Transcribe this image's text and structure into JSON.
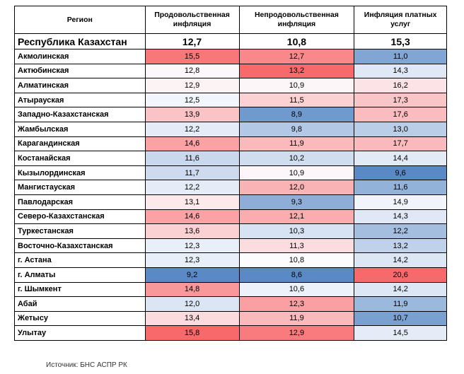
{
  "table": {
    "header": [
      "Регион",
      "Продовольственная инфляция",
      "Непродовольственная инфляция",
      "Инфляция платных услуг"
    ],
    "national": [
      "Республика Казахстан",
      "12,7",
      "10,8",
      "15,3"
    ],
    "rows": [
      [
        "Акмолинская",
        "15,5",
        "12,7",
        "11,0"
      ],
      [
        "Актюбинская",
        "12,8",
        "13,2",
        "14,3"
      ],
      [
        "Алматинская",
        "12,9",
        "10,9",
        "16,2"
      ],
      [
        "Атырауская",
        "12,5",
        "11,5",
        "17,3"
      ],
      [
        "Западно-Казахстанская",
        "13,9",
        "8,9",
        "17,6"
      ],
      [
        "Жамбылская",
        "12,2",
        "9,8",
        "13,0"
      ],
      [
        "Карагандинская",
        "14,6",
        "11,9",
        "17,7"
      ],
      [
        "Костанайская",
        "11,6",
        "10,2",
        "14,4"
      ],
      [
        "Кызылординская",
        "11,7",
        "10,9",
        "9,6"
      ],
      [
        "Мангистауская",
        "12,2",
        "12,0",
        "11,6"
      ],
      [
        "Павлодарская",
        "13,1",
        "9,3",
        "14,9"
      ],
      [
        "Северо-Казахстанская",
        "14,6",
        "12,1",
        "14,3"
      ],
      [
        "Туркестанская",
        "13,6",
        "10,3",
        "12,2"
      ],
      [
        "Восточно-Казахстанская",
        "12,3",
        "11,3",
        "13,2"
      ],
      [
        "г. Астана",
        "12,3",
        "10,8",
        "14,2"
      ],
      [
        "г. Алматы",
        "9,2",
        "8,6",
        "20,6"
      ],
      [
        "г. Шымкент",
        "14,8",
        "10,6",
        "14,2"
      ],
      [
        "Абай",
        "12,0",
        "12,3",
        "11,9"
      ],
      [
        "Жетысу",
        "13,4",
        "11,9",
        "10,7"
      ],
      [
        "Улытау",
        "15,8",
        "12,9",
        "14,5"
      ]
    ]
  },
  "source": "Источник: БНС АСПР РК"
}
